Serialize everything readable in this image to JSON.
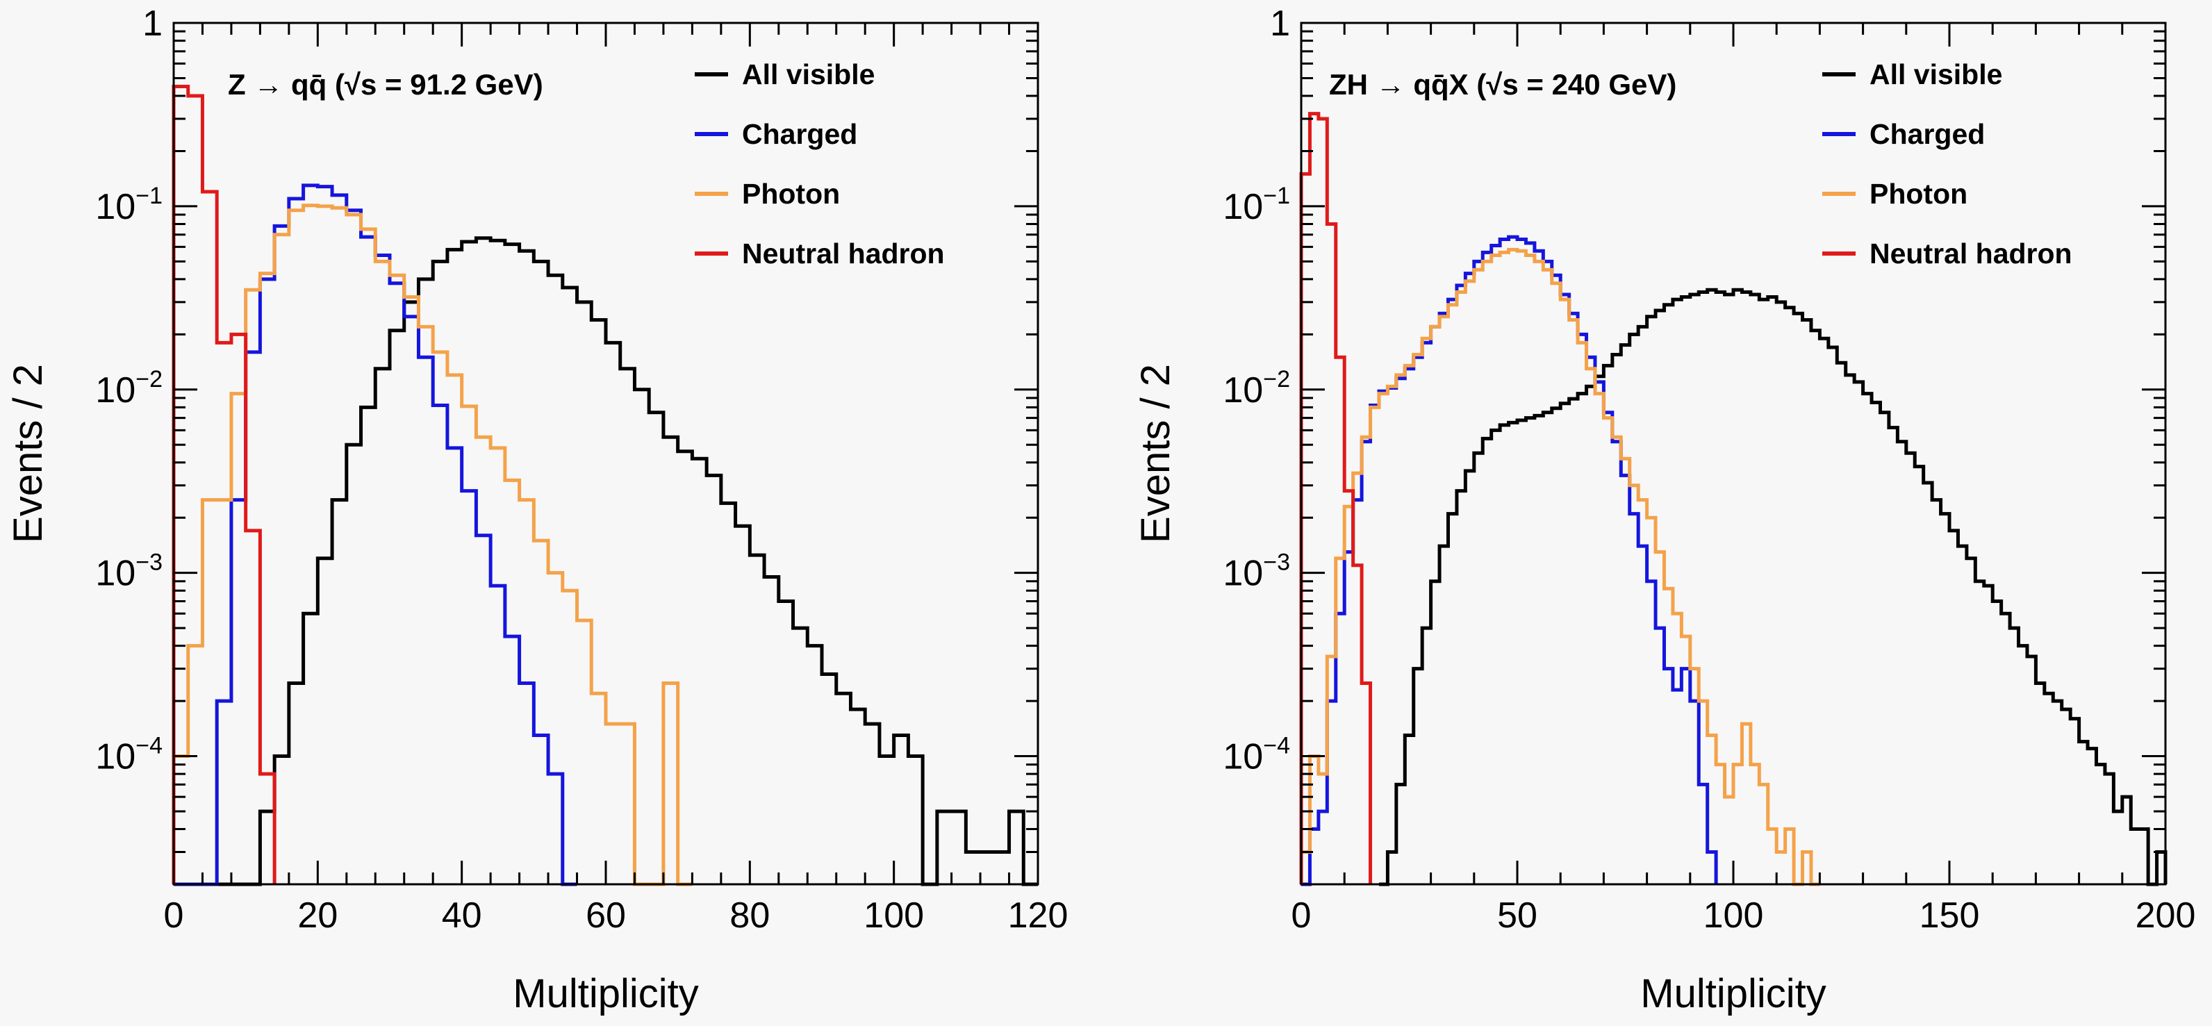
{
  "colors": {
    "All visible": "#000000",
    "Charged": "#1515dd",
    "Photon": "#f4a24a",
    "Neutral hadron": "#e01a1a",
    "background": "#f7f7f7"
  },
  "chart_data": [
    {
      "type": "step",
      "panel": "left",
      "title": "Z → qq̄ (√s = 91.2 GeV)",
      "xlabel": "Multiplicity",
      "ylabel": "Events / 2",
      "xlim": [
        0,
        120
      ],
      "ylim": [
        2e-05,
        1
      ],
      "yscale": "log",
      "bin_width": 2,
      "xticks": [
        0,
        20,
        40,
        60,
        80,
        100,
        120
      ],
      "xtick_labels": [
        "0",
        "20",
        "40",
        "60",
        "80",
        "100",
        "120"
      ],
      "yticks": [
        0.0001,
        0.001,
        0.01,
        0.1,
        1
      ],
      "ytick_labels": [
        {
          "base": "10",
          "exp": "−4"
        },
        {
          "base": "10",
          "exp": "−3"
        },
        {
          "base": "10",
          "exp": "−2"
        },
        {
          "base": "10",
          "exp": "−1"
        },
        {
          "base": "1",
          "exp": ""
        }
      ],
      "legend_position": "top-right",
      "legend": [
        "All visible",
        "Charged",
        "Photon",
        "Neutral hadron"
      ],
      "series": [
        {
          "name": "All visible",
          "x": [
            0,
            2,
            4,
            6,
            8,
            10,
            12,
            14,
            16,
            18,
            20,
            22,
            24,
            26,
            28,
            30,
            32,
            34,
            36,
            38,
            40,
            42,
            44,
            46,
            48,
            50,
            52,
            54,
            56,
            58,
            60,
            62,
            64,
            66,
            68,
            70,
            72,
            74,
            76,
            78,
            80,
            82,
            84,
            86,
            88,
            90,
            92,
            94,
            96,
            98,
            100,
            102,
            104,
            106,
            108,
            110,
            112,
            114,
            116,
            118
          ],
          "values": [
            0,
            0,
            0,
            0,
            0,
            0,
            5e-05,
            0.0001,
            0.00025,
            0.0006,
            0.0012,
            0.0025,
            0.005,
            0.008,
            0.013,
            0.021,
            0.03,
            0.04,
            0.05,
            0.058,
            0.064,
            0.067,
            0.065,
            0.062,
            0.057,
            0.05,
            0.042,
            0.036,
            0.03,
            0.024,
            0.018,
            0.013,
            0.01,
            0.0075,
            0.0055,
            0.0046,
            0.0042,
            0.0034,
            0.0024,
            0.0018,
            0.00125,
            0.00095,
            0.0007,
            0.0005,
            0.0004,
            0.00028,
            0.00022,
            0.00018,
            0.00015,
            0.0001,
            0.00013,
            0.0001,
            2e-05,
            5e-05,
            5e-05,
            3e-05,
            3e-05,
            3e-05,
            5e-05,
            2e-05
          ]
        },
        {
          "name": "Charged",
          "x": [
            0,
            2,
            4,
            6,
            8,
            10,
            12,
            14,
            16,
            18,
            20,
            22,
            24,
            26,
            28,
            30,
            32,
            34,
            36,
            38,
            40,
            42,
            44,
            46,
            48,
            50,
            52,
            54
          ],
          "values": [
            0,
            0,
            2e-05,
            0.0002,
            0.0025,
            0.016,
            0.04,
            0.078,
            0.11,
            0.13,
            0.128,
            0.115,
            0.095,
            0.068,
            0.054,
            0.038,
            0.025,
            0.015,
            0.0082,
            0.0048,
            0.0028,
            0.0016,
            0.00085,
            0.00045,
            0.00025,
            0.00013,
            8e-05,
            2e-05
          ]
        },
        {
          "name": "Photon",
          "x": [
            0,
            2,
            4,
            6,
            8,
            10,
            12,
            14,
            16,
            18,
            20,
            22,
            24,
            26,
            28,
            30,
            32,
            34,
            36,
            38,
            40,
            42,
            44,
            46,
            48,
            50,
            52,
            54,
            56,
            58,
            60,
            62,
            64,
            66,
            68,
            70
          ],
          "values": [
            0.0001,
            0.0004,
            0.0025,
            0.0025,
            0.0095,
            0.035,
            0.043,
            0.07,
            0.095,
            0.101,
            0.1,
            0.098,
            0.09,
            0.075,
            0.05,
            0.042,
            0.032,
            0.022,
            0.016,
            0.012,
            0.0081,
            0.0055,
            0.0048,
            0.0032,
            0.0025,
            0.0015,
            0.001,
            0.0008,
            0.00055,
            0.00022,
            0.00015,
            0.00015,
            2e-05,
            2e-05,
            0.00025,
            2e-05
          ]
        },
        {
          "name": "Neutral hadron",
          "x": [
            0,
            2,
            4,
            6,
            8,
            10,
            12
          ],
          "values": [
            0.45,
            0.4,
            0.12,
            0.018,
            0.02,
            0.0017,
            8e-05
          ]
        }
      ]
    },
    {
      "type": "step",
      "panel": "right",
      "title": "ZH → qq̄X (√s = 240 GeV)",
      "xlabel": "Multiplicity",
      "ylabel": "Events / 2",
      "xlim": [
        0,
        200
      ],
      "ylim": [
        2e-05,
        1
      ],
      "yscale": "log",
      "bin_width": 2,
      "xticks": [
        0,
        50,
        100,
        150,
        200
      ],
      "xtick_labels": [
        "0",
        "50",
        "100",
        "150",
        "200"
      ],
      "yticks": [
        0.0001,
        0.001,
        0.01,
        0.1,
        1
      ],
      "ytick_labels": [
        {
          "base": "10",
          "exp": "−4"
        },
        {
          "base": "10",
          "exp": "−3"
        },
        {
          "base": "10",
          "exp": "−2"
        },
        {
          "base": "10",
          "exp": "−1"
        },
        {
          "base": "1",
          "exp": ""
        }
      ],
      "legend_position": "top-right",
      "legend": [
        "All visible",
        "Charged",
        "Photon",
        "Neutral hadron"
      ],
      "series": [
        {
          "name": "All visible",
          "x": [
            18,
            20,
            22,
            24,
            26,
            28,
            30,
            32,
            34,
            36,
            38,
            40,
            42,
            44,
            46,
            48,
            50,
            52,
            54,
            56,
            58,
            60,
            62,
            64,
            66,
            68,
            70,
            72,
            74,
            76,
            78,
            80,
            82,
            84,
            86,
            88,
            90,
            92,
            94,
            96,
            98,
            100,
            102,
            104,
            106,
            108,
            110,
            112,
            114,
            116,
            118,
            120,
            122,
            124,
            126,
            128,
            130,
            132,
            134,
            136,
            138,
            140,
            142,
            144,
            146,
            148,
            150,
            152,
            154,
            156,
            158,
            160,
            162,
            164,
            166,
            168,
            170,
            172,
            174,
            176,
            178,
            180,
            182,
            184,
            186,
            188,
            190,
            192,
            194,
            196,
            198
          ],
          "values": [
            2e-05,
            3e-05,
            7e-05,
            0.00013,
            0.0003,
            0.0005,
            0.0009,
            0.0014,
            0.0021,
            0.0028,
            0.0036,
            0.0045,
            0.0054,
            0.006,
            0.0064,
            0.0066,
            0.0068,
            0.007,
            0.0072,
            0.0075,
            0.0079,
            0.0084,
            0.0089,
            0.0095,
            0.0104,
            0.0118,
            0.0135,
            0.0155,
            0.0175,
            0.02,
            0.022,
            0.025,
            0.027,
            0.029,
            0.031,
            0.032,
            0.033,
            0.034,
            0.035,
            0.034,
            0.033,
            0.035,
            0.034,
            0.033,
            0.031,
            0.032,
            0.03,
            0.028,
            0.026,
            0.024,
            0.021,
            0.019,
            0.017,
            0.014,
            0.012,
            0.011,
            0.0095,
            0.0085,
            0.0075,
            0.0062,
            0.0052,
            0.0045,
            0.0038,
            0.0031,
            0.0025,
            0.0021,
            0.0017,
            0.0014,
            0.0012,
            0.0009,
            0.00085,
            0.0007,
            0.0006,
            0.0005,
            0.0004,
            0.00035,
            0.00025,
            0.00022,
            0.0002,
            0.00018,
            0.00016,
            0.00012,
            0.00011,
            9e-05,
            8e-05,
            5e-05,
            6e-05,
            4e-05,
            4e-05,
            2e-05,
            3e-05
          ]
        },
        {
          "name": "Charged",
          "x": [
            0,
            2,
            4,
            6,
            8,
            10,
            12,
            14,
            16,
            18,
            20,
            22,
            24,
            26,
            28,
            30,
            32,
            34,
            36,
            38,
            40,
            42,
            44,
            46,
            48,
            50,
            52,
            54,
            56,
            58,
            60,
            62,
            64,
            66,
            68,
            70,
            72,
            74,
            76,
            78,
            80,
            82,
            84,
            86,
            88,
            90,
            92,
            94
          ],
          "values": [
            0,
            4e-05,
            5e-05,
            0.0002,
            0.0006,
            0.0013,
            0.0025,
            0.0052,
            0.0082,
            0.0098,
            0.0102,
            0.0115,
            0.013,
            0.015,
            0.018,
            0.022,
            0.026,
            0.031,
            0.037,
            0.043,
            0.05,
            0.056,
            0.061,
            0.066,
            0.068,
            0.066,
            0.063,
            0.057,
            0.05,
            0.042,
            0.033,
            0.026,
            0.02,
            0.015,
            0.011,
            0.0075,
            0.0052,
            0.0034,
            0.0021,
            0.0014,
            0.0009,
            0.0005,
            0.0003,
            0.00023,
            0.0003,
            0.0002,
            7e-05,
            3e-05
          ]
        },
        {
          "name": "Photon",
          "x": [
            0,
            2,
            4,
            6,
            8,
            10,
            12,
            14,
            16,
            18,
            20,
            22,
            24,
            26,
            28,
            30,
            32,
            34,
            36,
            38,
            40,
            42,
            44,
            46,
            48,
            50,
            52,
            54,
            56,
            58,
            60,
            62,
            64,
            66,
            68,
            70,
            72,
            74,
            76,
            78,
            80,
            82,
            84,
            86,
            88,
            90,
            92,
            94,
            96,
            98,
            100,
            102,
            104,
            106,
            108,
            110,
            112,
            114,
            116,
            118
          ],
          "values": [
            3e-05,
            0.0001,
            8e-05,
            0.00035,
            0.0012,
            0.0023,
            0.0035,
            0.0055,
            0.008,
            0.0095,
            0.0104,
            0.012,
            0.0135,
            0.0155,
            0.019,
            0.022,
            0.025,
            0.029,
            0.034,
            0.039,
            0.045,
            0.05,
            0.054,
            0.056,
            0.058,
            0.057,
            0.054,
            0.05,
            0.045,
            0.038,
            0.031,
            0.024,
            0.018,
            0.013,
            0.0095,
            0.007,
            0.0055,
            0.0042,
            0.003,
            0.0025,
            0.002,
            0.0013,
            0.00082,
            0.0006,
            0.00045,
            0.0003,
            0.0002,
            0.00013,
            9e-05,
            6e-05,
            9e-05,
            0.00015,
            9e-05,
            7e-05,
            4e-05,
            3e-05,
            4e-05,
            2e-05,
            3e-05,
            2e-05
          ]
        },
        {
          "name": "Neutral hadron",
          "x": [
            0,
            2,
            4,
            6,
            8,
            10,
            12,
            14
          ],
          "values": [
            0.15,
            0.32,
            0.3,
            0.08,
            0.015,
            0.0028,
            0.0011,
            0.00025
          ]
        }
      ]
    }
  ]
}
